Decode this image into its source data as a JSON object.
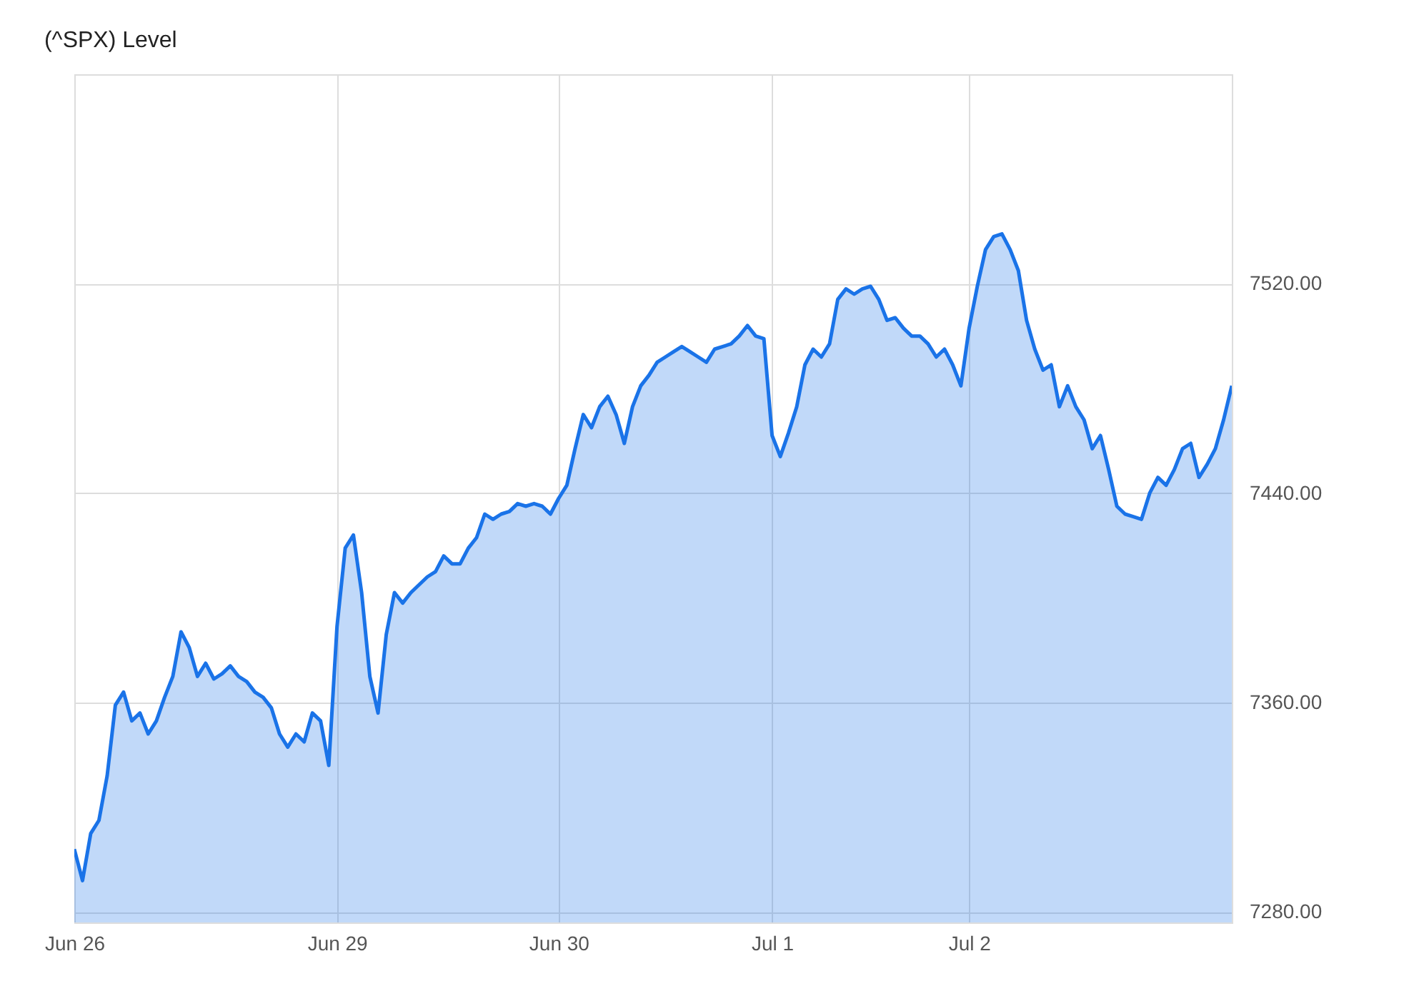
{
  "chart_data": {
    "type": "area",
    "title": "(^SPX) Level",
    "categories": [
      "Jun 26",
      null,
      null,
      null,
      null,
      null,
      null,
      null,
      null,
      null,
      null,
      null,
      null,
      null,
      null,
      null,
      null,
      null,
      null,
      null,
      null,
      null,
      null,
      null,
      null,
      null,
      null,
      null,
      null,
      null,
      null,
      null,
      "Jun 29",
      null,
      null,
      null,
      null,
      null,
      null,
      null,
      null,
      null,
      null,
      null,
      null,
      null,
      null,
      null,
      null,
      null,
      null,
      null,
      null,
      null,
      null,
      null,
      null,
      null,
      null,
      "Jun 30",
      null,
      null,
      null,
      null,
      null,
      null,
      null,
      null,
      null,
      null,
      null,
      null,
      null,
      null,
      null,
      null,
      null,
      null,
      null,
      null,
      null,
      null,
      null,
      null,
      null,
      "Jul 1",
      null,
      null,
      null,
      null,
      null,
      null,
      null,
      null,
      null,
      null,
      null,
      null,
      null,
      null,
      null,
      null,
      null,
      null,
      null,
      null,
      null,
      null,
      null,
      "Jul 2",
      null,
      null,
      null,
      null,
      null,
      null,
      null,
      null,
      null,
      null,
      null,
      null,
      null,
      null,
      null,
      null,
      null,
      null,
      null,
      null,
      null,
      null,
      null,
      null,
      null,
      null,
      null,
      null,
      null,
      null,
      null,
      null
    ],
    "series": [
      {
        "color": "#1a73e8",
        "values": [
          7304,
          7292,
          7310,
          7315,
          7332,
          7359,
          7364,
          7353,
          7356,
          7348,
          7353,
          7362,
          7370,
          7387,
          7381,
          7370,
          7375,
          7369,
          7371,
          7374,
          7370,
          7368,
          7364,
          7362,
          7358,
          7348,
          7343,
          7348,
          7345,
          7356,
          7353,
          7336,
          7389,
          7419,
          7424,
          7402,
          7370,
          7356,
          7386,
          7402,
          7398,
          7402,
          7405,
          7408,
          7410,
          7416,
          7413,
          7413,
          7419,
          7423,
          7432,
          7430,
          7432,
          7433,
          7436,
          7435,
          7436,
          7435,
          7432,
          7438,
          7443,
          7457,
          7470,
          7465,
          7473,
          7477,
          7470,
          7459,
          7473,
          7481,
          7485,
          7490,
          7492,
          7494,
          7496,
          7494,
          7492,
          7490,
          7495,
          7496,
          7497,
          7500,
          7504,
          7500,
          7499,
          7462,
          7454,
          7463,
          7473,
          7489,
          7495,
          7492,
          7497,
          7514,
          7518,
          7516,
          7518,
          7519,
          7514,
          7506,
          7507,
          7503,
          7500,
          7500,
          7497,
          7492,
          7495,
          7489,
          7481,
          7503,
          7519,
          7533,
          7538,
          7539,
          7533,
          7525,
          7506,
          7495,
          7487,
          7489,
          7473,
          7481,
          7473,
          7468,
          7457,
          7462,
          7449,
          7435,
          7432,
          7431,
          7430,
          7440,
          7446,
          7443,
          7449,
          7457,
          7459,
          7446,
          7451,
          7457,
          7468,
          7481
        ]
      }
    ],
    "ylim": [
      7276,
      7600
    ],
    "yticks": [
      {
        "value": 7280,
        "label": "7280.00"
      },
      {
        "value": 7360,
        "label": "7360.00"
      },
      {
        "value": 7440,
        "label": "7440.00"
      },
      {
        "value": 7520,
        "label": "7520.00"
      }
    ],
    "grid": true,
    "line_style": "solid",
    "marker": "none"
  }
}
